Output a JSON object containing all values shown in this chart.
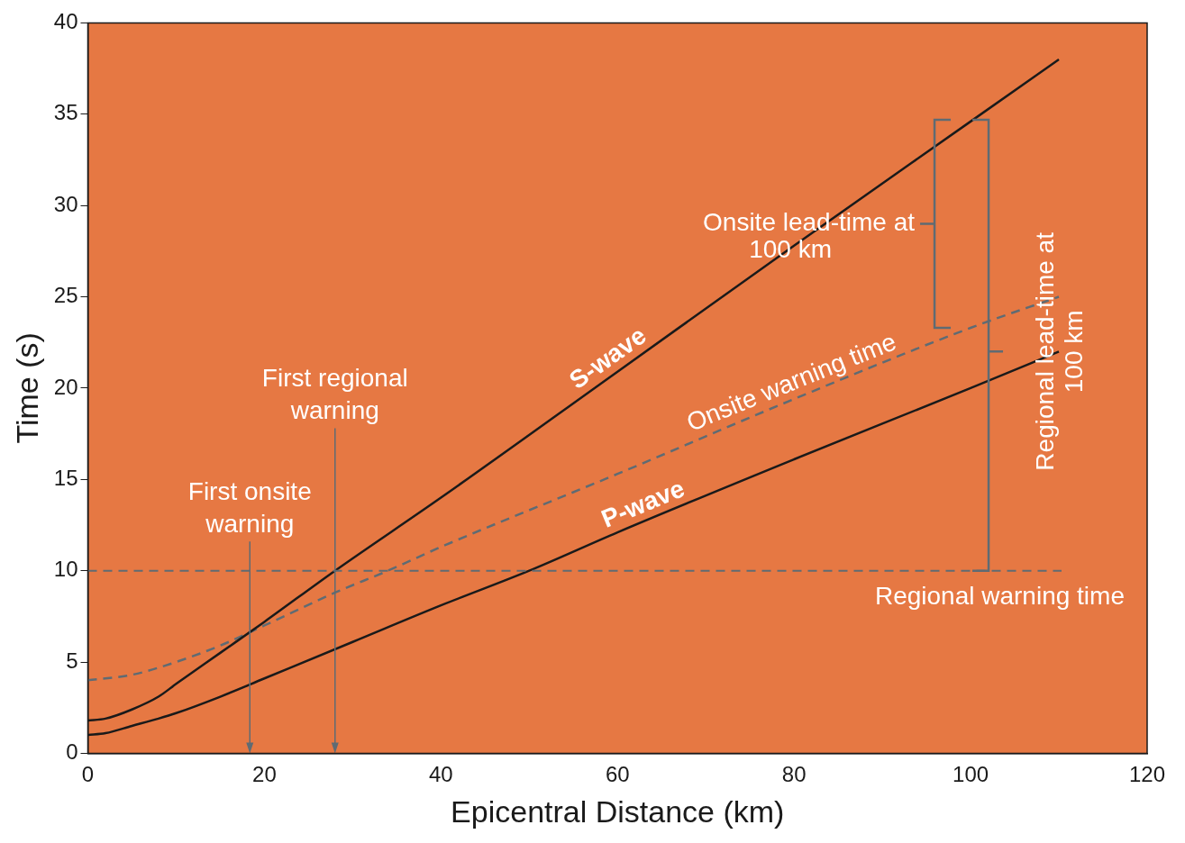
{
  "chart_data": {
    "type": "line",
    "xlabel": "Epicentral Distance (km)",
    "ylabel": "Time (s)",
    "xlim": [
      0,
      120
    ],
    "xticks": [
      0,
      20,
      40,
      60,
      80,
      100,
      120
    ],
    "ylim": [
      0,
      40
    ],
    "yticks": [
      0,
      5,
      10,
      15,
      20,
      25,
      30,
      35,
      40
    ],
    "grid": false,
    "legend": false,
    "marker": "none",
    "series": [
      {
        "name": "S-wave",
        "color": "#1a1a1a",
        "line_style": "solid",
        "x": [
          0,
          2,
          5,
          8,
          10,
          15,
          20,
          28,
          40,
          60,
          80,
          100,
          110
        ],
        "values": [
          1.8,
          1.9,
          2.4,
          3.1,
          3.8,
          5.5,
          7.2,
          10,
          14,
          20.9,
          27.8,
          34.6,
          38
        ]
      },
      {
        "name": "P-wave",
        "color": "#1a1a1a",
        "line_style": "solid",
        "x": [
          0,
          2,
          5,
          8,
          10,
          15,
          20,
          30,
          40,
          50,
          60,
          80,
          100,
          110
        ],
        "values": [
          1,
          1.1,
          1.5,
          1.9,
          2.2,
          3.1,
          4.1,
          6.1,
          8.1,
          10,
          12.1,
          16.1,
          20,
          22
        ]
      },
      {
        "name": "Onsite warning time",
        "color": "#5f6b73",
        "line_style": "dashed",
        "x": [
          0,
          5,
          10,
          15,
          20,
          28,
          34,
          40,
          60,
          80,
          100,
          110
        ],
        "values": [
          4,
          4.3,
          5,
          5.9,
          7,
          8.8,
          10,
          11.3,
          15.3,
          19.4,
          23.3,
          25
        ]
      }
    ],
    "ref_lines": [
      {
        "axis": "y",
        "value": 10,
        "label": "Regional warning time",
        "color": "#5f6b73",
        "line_style": "dashed"
      }
    ],
    "annotations": [
      "First onsite warning",
      "First regional warning",
      "Onsite lead-time at 100 km",
      "Regional lead-time at 100 km"
    ]
  }
}
